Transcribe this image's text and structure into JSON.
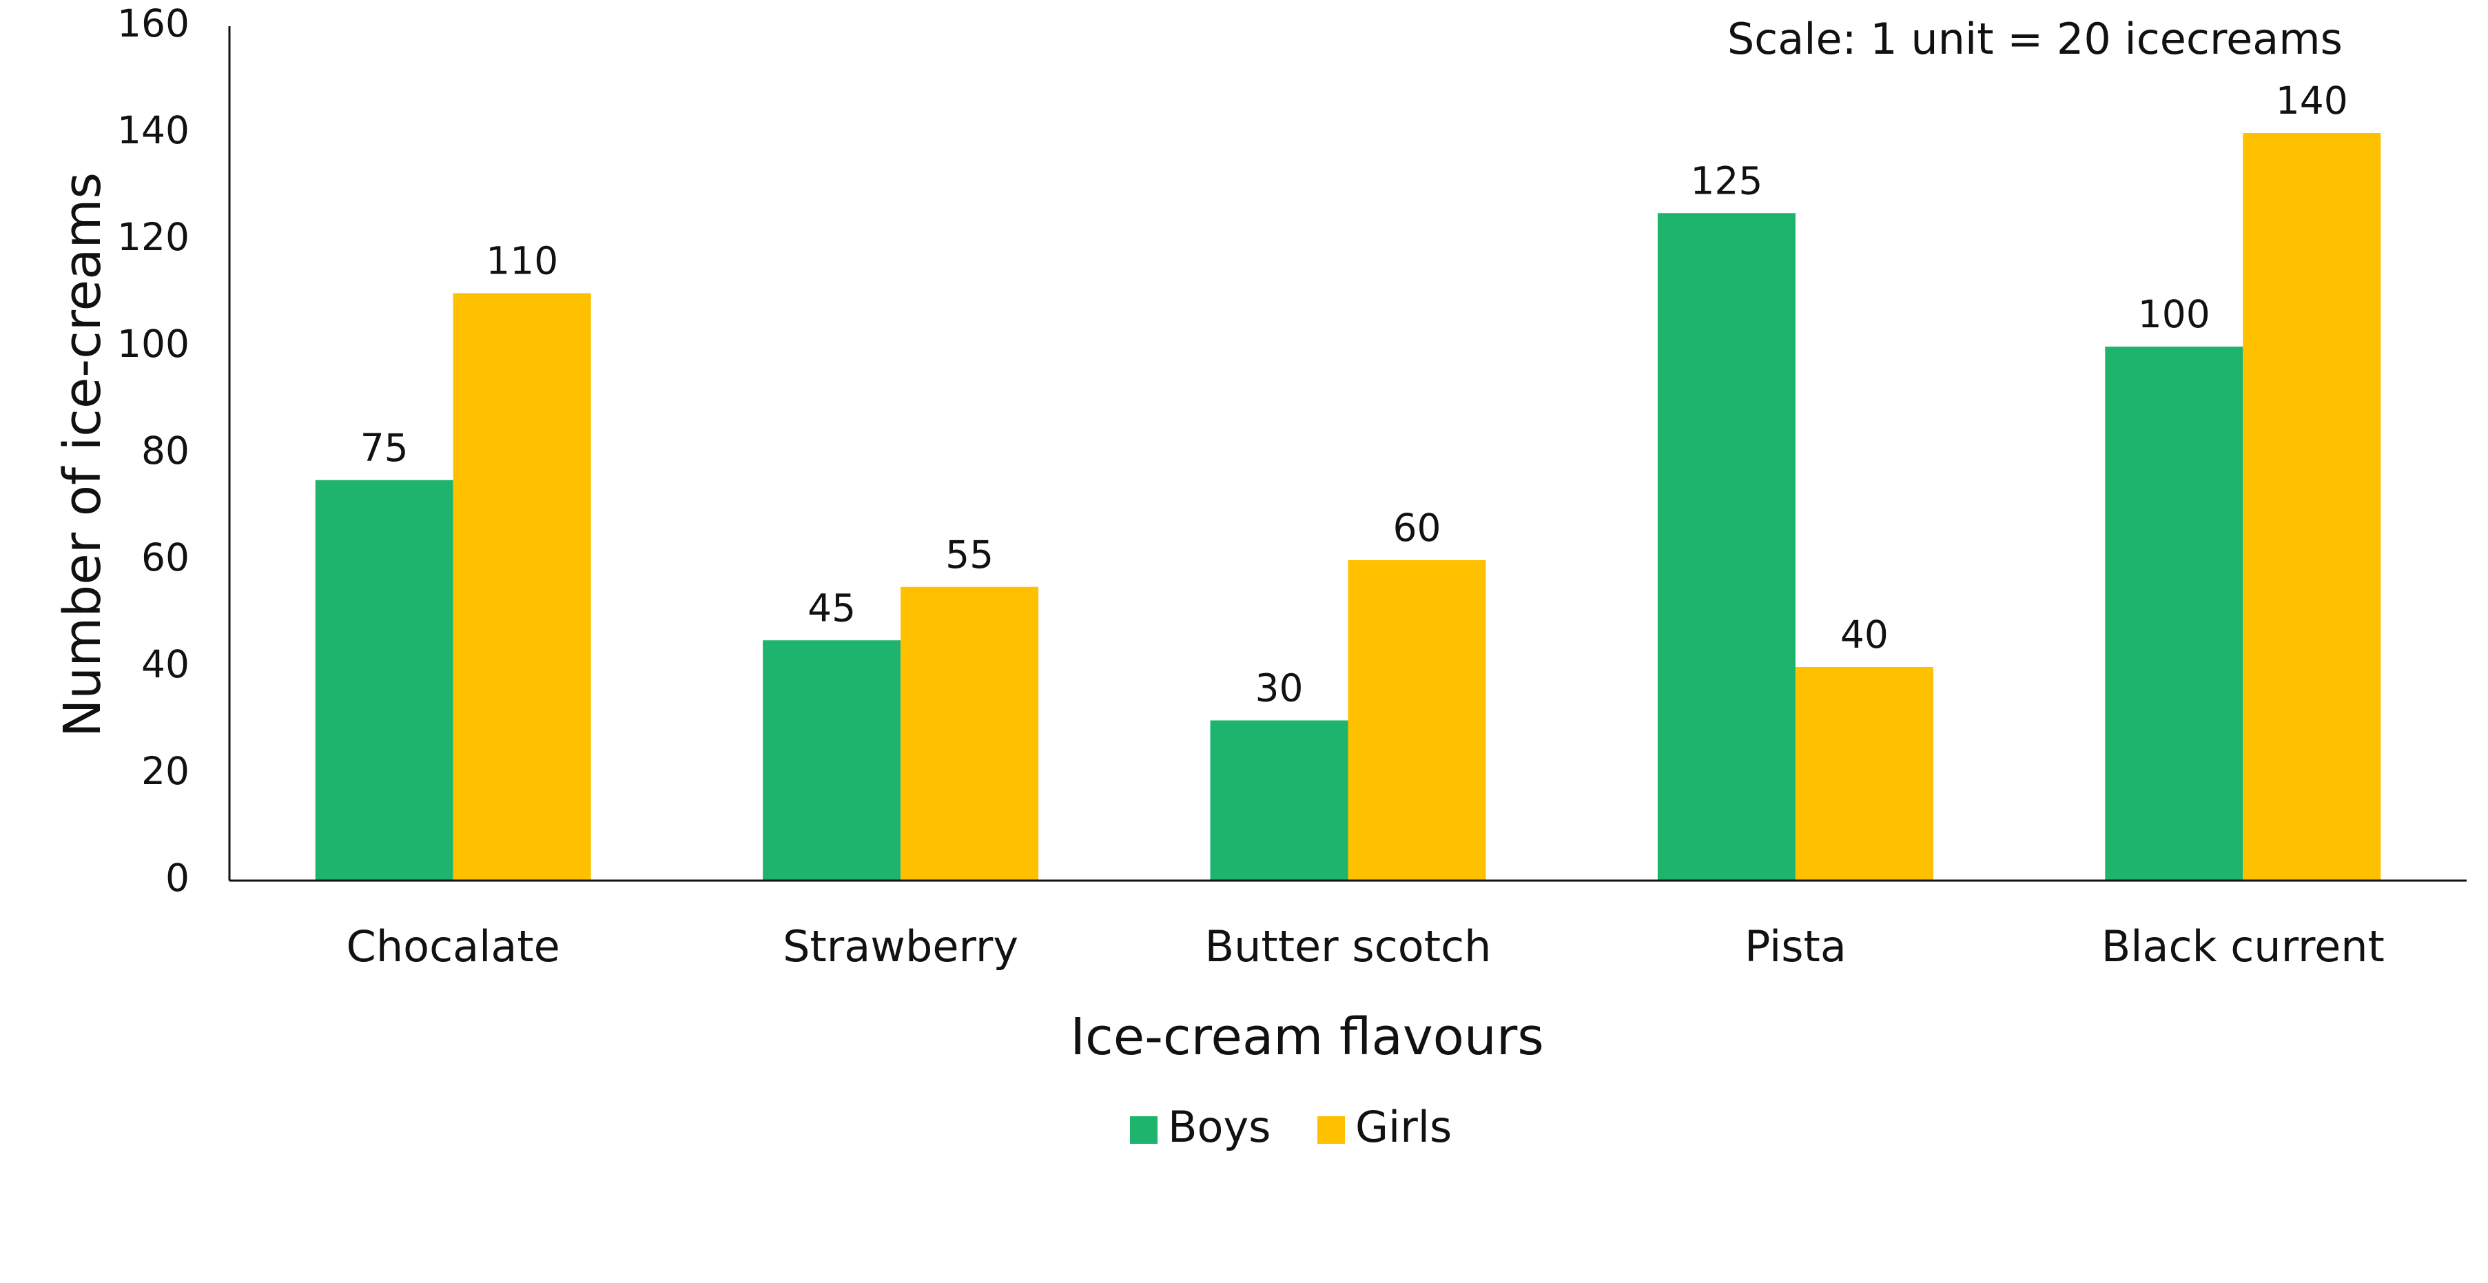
{
  "chart_data": {
    "type": "bar",
    "title": "",
    "xlabel": "Ice-cream flavours",
    "ylabel": "Number of ice-creams",
    "annotation": "Scale: 1 unit = 20 icecreams",
    "categories": [
      "Chocalate",
      "Strawberry",
      "Butter scotch",
      "Pista",
      "Black current"
    ],
    "series": [
      {
        "name": "Boys",
        "color": "#1fb46e",
        "values": [
          75,
          45,
          30,
          125,
          100
        ]
      },
      {
        "name": "Girls",
        "color": "#ffc000",
        "values": [
          110,
          55,
          60,
          40,
          140
        ]
      }
    ],
    "ylim": [
      0,
      160
    ],
    "yticks": [
      0,
      20,
      40,
      60,
      80,
      100,
      120,
      140,
      160
    ],
    "grid": false,
    "legend_position": "bottom-center",
    "data_labels": true
  }
}
